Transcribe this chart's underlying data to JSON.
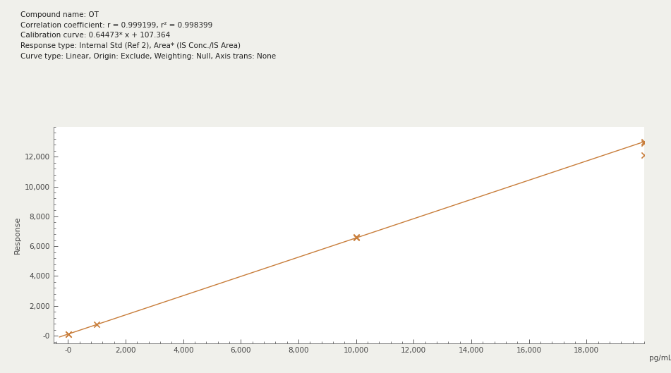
{
  "title_lines": [
    "Compound name: OT",
    "Correlation coefficient: r = 0.999199, r² = 0.998399",
    "Calibration curve: 0.64473* x + 107.364",
    "Response type: Internal Std (Ref 2), Area* (IS Conc./IS Area)",
    "Curve type: Linear, Origin: Exclude, Weighting: Null, Axis trans: None"
  ],
  "slope": 0.64473,
  "intercept": 107.364,
  "scatter_x": [
    10,
    20,
    1000,
    10000,
    10000,
    20000,
    20000,
    20000
  ],
  "scatter_y": [
    113.8,
    120.0,
    751.7,
    6555.0,
    6620.0,
    13002.0,
    12895.0,
    12100.0
  ],
  "color": "#C87D3A",
  "xlabel": "pg/mL",
  "ylabel": "Response",
  "xlim": [
    -500,
    20000
  ],
  "ylim": [
    -500,
    14000
  ],
  "xticks": [
    0,
    2000,
    4000,
    6000,
    8000,
    10000,
    12000,
    14000,
    16000,
    18000
  ],
  "yticks": [
    0,
    2000,
    4000,
    6000,
    8000,
    10000,
    12000
  ],
  "background_color": "#f0f0eb",
  "plot_bg_color": "#ffffff",
  "line_x_start": -300,
  "line_x_end": 20000
}
